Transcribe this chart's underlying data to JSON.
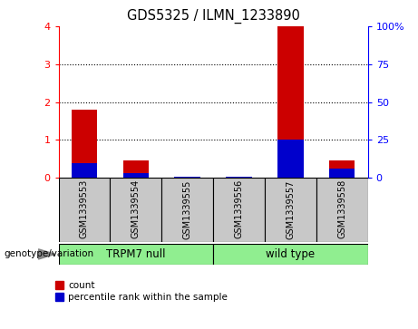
{
  "title": "GDS5325 / ILMN_1233890",
  "samples": [
    "GSM1339553",
    "GSM1339554",
    "GSM1339555",
    "GSM1339556",
    "GSM1339557",
    "GSM1339558"
  ],
  "count_values": [
    1.8,
    0.45,
    0.03,
    0.03,
    4.0,
    0.45
  ],
  "percentile_values": [
    0.38,
    0.12,
    0.03,
    0.03,
    1.0,
    0.25
  ],
  "group_info": [
    {
      "label": "TRPM7 null",
      "start": 0,
      "end": 3
    },
    {
      "label": "wild type",
      "start": 3,
      "end": 6
    }
  ],
  "group_label_prefix": "genotype/variation",
  "left_ylim": [
    0,
    4
  ],
  "right_ylim": [
    0,
    100
  ],
  "left_yticks": [
    0,
    1,
    2,
    3,
    4
  ],
  "right_yticks": [
    0,
    25,
    50,
    75,
    100
  ],
  "bar_color_red": "#CC0000",
  "bar_color_blue": "#0000CC",
  "bg_color": "#C8C8C8",
  "green_color": "#90EE90",
  "bar_width": 0.5,
  "legend_red_label": "count",
  "legend_blue_label": "percentile rank within the sample"
}
